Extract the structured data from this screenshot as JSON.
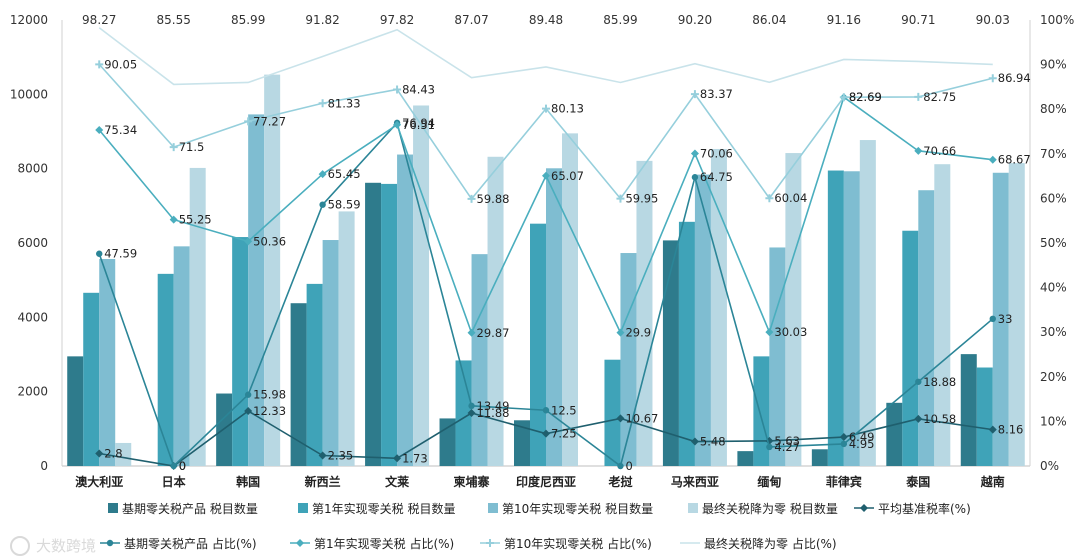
{
  "chart_data": {
    "type": "bar",
    "categories": [
      "澳大利亚",
      "日本",
      "韩国",
      "新西兰",
      "文莱",
      "柬埔寨",
      "印度尼西亚",
      "老挝",
      "马来西亚",
      "缅甸",
      "菲律宾",
      "泰国",
      "越南"
    ],
    "y_left": {
      "min": 0,
      "max": 12000,
      "ticks": [
        "0",
        "2000",
        "4000",
        "6000",
        "8000",
        "10000",
        "12000"
      ]
    },
    "y_right": {
      "min": 0,
      "max": 100,
      "ticks": [
        "0%",
        "10%",
        "20%",
        "30%",
        "40%",
        "50%",
        "60%",
        "70%",
        "80%",
        "90%",
        "100%"
      ]
    },
    "bar_series": [
      {
        "name": "基期零关税产品 税目数量",
        "color": "#2e7b8c",
        "values": [
          2950,
          0,
          1950,
          4380,
          7620,
          1280,
          1230,
          0,
          6070,
          400,
          450,
          1700,
          3010
        ]
      },
      {
        "name": "第1年实现零关税 税目数量",
        "color": "#3fa3b8",
        "values": [
          4660,
          5170,
          6160,
          4900,
          7590,
          2840,
          6520,
          2860,
          6570,
          2950,
          7950,
          6330,
          2650
        ]
      },
      {
        "name": "第10年实现零关税 税目数量",
        "color": "#7fbdd1",
        "values": [
          5570,
          5910,
          9460,
          6080,
          8380,
          5700,
          8010,
          5730,
          7840,
          5880,
          7930,
          7420,
          7890
        ]
      },
      {
        "name": "最终关税降为零 税目数量",
        "color": "#b8d8e3",
        "values": [
          620,
          8020,
          10530,
          6850,
          9700,
          8320,
          8950,
          8210,
          8530,
          8420,
          8770,
          8120,
          8150
        ]
      }
    ],
    "line_series": [
      {
        "name": "平均基准税率(%)",
        "color": "#1f5f6e",
        "marker": "diamond",
        "values": [
          2.8,
          0,
          12.33,
          2.35,
          1.73,
          11.88,
          7.25,
          10.67,
          5.48,
          5.63,
          6.49,
          10.58,
          8.16
        ],
        "labels": [
          "2.8",
          "0",
          "12.33",
          "2.35",
          "1.73",
          "11.88",
          "7.25",
          "10.67",
          "5.48",
          "5.63",
          "6.49",
          "10.58",
          "8.16"
        ]
      },
      {
        "name": "基期零关税产品 占比(%)",
        "color": "#2b8597",
        "marker": "circle",
        "values": [
          47.59,
          0,
          15.98,
          58.59,
          76.94,
          13.49,
          12.5,
          0,
          64.75,
          4.27,
          4.95,
          18.88,
          33
        ],
        "labels": [
          "47.59",
          "0",
          "15.98",
          "58.59",
          "76.94",
          "13.49",
          "12.5",
          "0",
          "64.75",
          "4.27",
          "4.95",
          "18.88",
          "33"
        ]
      },
      {
        "name": "第1年实现零关税 占比(%)",
        "color": "#4aaebe",
        "marker": "diamond",
        "values": [
          75.34,
          55.25,
          50.36,
          65.45,
          76.51,
          29.87,
          65.07,
          29.9,
          70.06,
          30.03,
          82.69,
          70.66,
          68.67
        ],
        "labels": [
          "75.34",
          "55.25",
          "50.36",
          "65.45",
          "76.51",
          "29.87",
          "65.07",
          "29.9",
          "70.06",
          "30.03",
          "82.69",
          "70.66",
          "68.67"
        ]
      },
      {
        "name": "第10年实现零关税 占比(%)",
        "color": "#96cfdc",
        "marker": "square",
        "values": [
          90.05,
          71.5,
          77.27,
          81.33,
          84.43,
          59.88,
          80.13,
          59.95,
          83.37,
          60.04,
          82.69,
          82.75,
          86.94
        ],
        "labels": [
          "90.05",
          "71.5",
          "77.27",
          "81.33",
          "84.43",
          "59.88",
          "80.13",
          "59.95",
          "83.37",
          "60.04",
          "82.69",
          "82.75",
          "86.94"
        ]
      },
      {
        "name": "最终关税降为零 占比(%)",
        "color": "#c9e3ea",
        "marker": "none",
        "values": [
          98.27,
          85.55,
          85.99,
          91.82,
          97.82,
          87.07,
          89.48,
          85.99,
          90.2,
          86.04,
          91.16,
          90.71,
          90.03
        ],
        "labels": [
          "98.27",
          "85.55",
          "85.99",
          "91.82",
          "97.82",
          "87.07",
          "89.48",
          "85.99",
          "90.20",
          "86.04",
          "91.16",
          "90.71",
          "90.03"
        ]
      }
    ]
  },
  "legend": {
    "row1": [
      "基期零关税产品 税目数量",
      "第1年实现零关税 税目数量",
      "第10年实现零关税 税目数量",
      "最终关税降为零 税目数量",
      "平均基准税率(%)"
    ],
    "row2": [
      "基期零关税产品 占比(%)",
      "第1年实现零关税 占比(%)",
      "第10年实现零关税 占比(%)",
      "最终关税降为零 占比(%)"
    ]
  },
  "watermark": "大数跨境"
}
